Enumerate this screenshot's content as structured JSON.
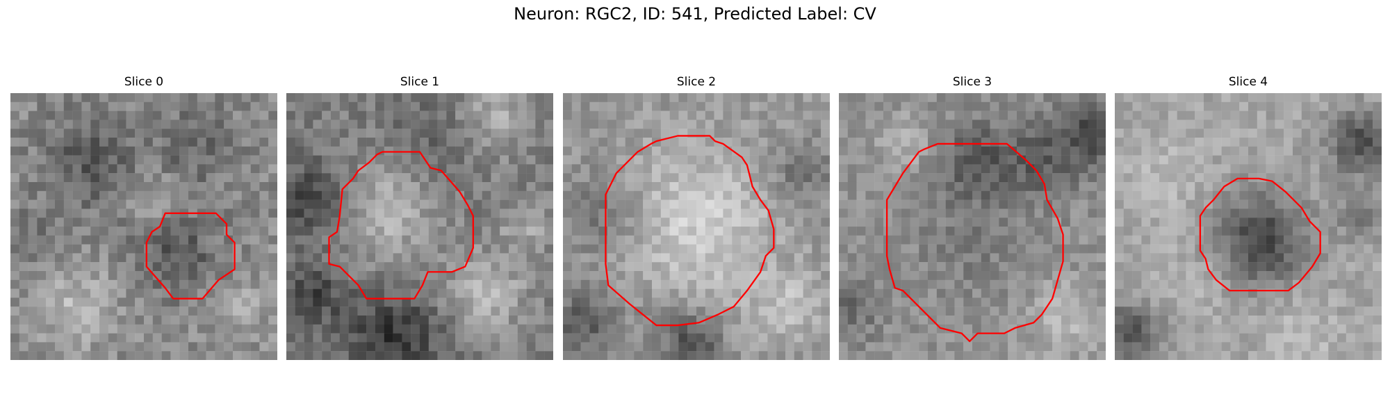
{
  "figure": {
    "title": "Neuron: RGC2, ID: 541, Predicted Label: CV",
    "contour_color": "#ff0000",
    "colormap": "gray",
    "panels": [
      {
        "title": "Slice 0"
      },
      {
        "title": "Slice 1"
      },
      {
        "title": "Slice 2"
      },
      {
        "title": "Slice 3"
      },
      {
        "title": "Slice 4"
      }
    ]
  }
}
